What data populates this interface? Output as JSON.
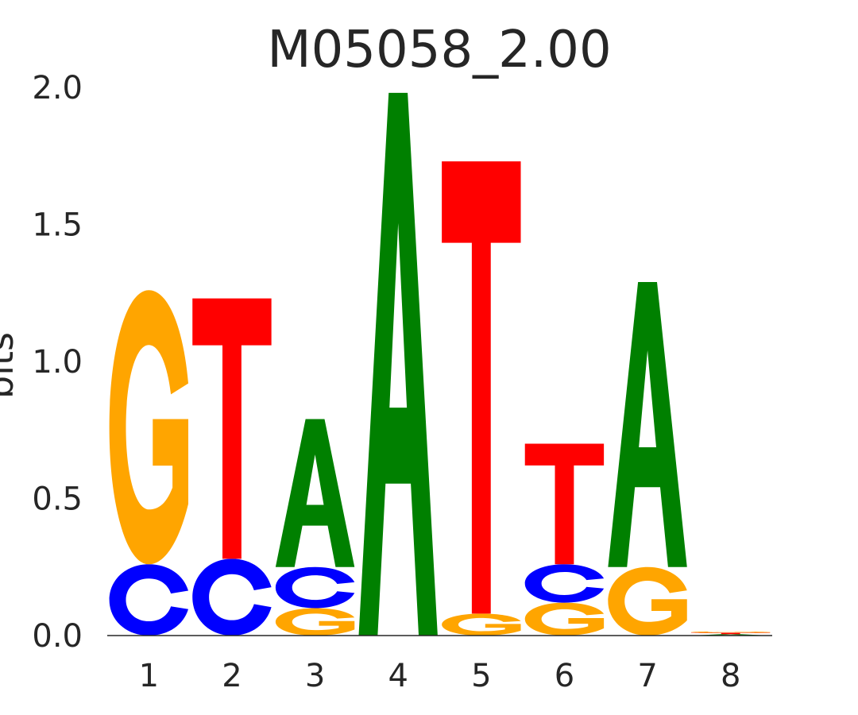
{
  "chart_data": {
    "type": "sequence-logo",
    "title": "M05058_2.00",
    "ylabel": "bits",
    "xlabel": "",
    "ylim": [
      0,
      2
    ],
    "yticks": [
      "0.0",
      "0.5",
      "1.0",
      "1.5",
      "2.0"
    ],
    "ytick_values": [
      0,
      0.5,
      1.0,
      1.5,
      2.0
    ],
    "xticks": [
      "1",
      "2",
      "3",
      "4",
      "5",
      "6",
      "7",
      "8"
    ],
    "grid": false,
    "letter_colors": {
      "A": "#008000",
      "C": "#0000ff",
      "G": "#ffa500",
      "T": "#ff0000"
    },
    "positions": [
      {
        "position": "1",
        "stack": [
          {
            "letter": "C",
            "height": 0.26
          },
          {
            "letter": "G",
            "height": 1.0
          }
        ]
      },
      {
        "position": "2",
        "stack": [
          {
            "letter": "C",
            "height": 0.28
          },
          {
            "letter": "T",
            "height": 0.95
          }
        ]
      },
      {
        "position": "3",
        "stack": [
          {
            "letter": "G",
            "height": 0.1
          },
          {
            "letter": "C",
            "height": 0.15
          },
          {
            "letter": "A",
            "height": 0.54
          }
        ]
      },
      {
        "position": "4",
        "stack": [
          {
            "letter": "A",
            "height": 1.98
          }
        ]
      },
      {
        "position": "5",
        "stack": [
          {
            "letter": "G",
            "height": 0.08
          },
          {
            "letter": "T",
            "height": 1.65
          }
        ]
      },
      {
        "position": "6",
        "stack": [
          {
            "letter": "G",
            "height": 0.12
          },
          {
            "letter": "C",
            "height": 0.14
          },
          {
            "letter": "T",
            "height": 0.44
          }
        ]
      },
      {
        "position": "7",
        "stack": [
          {
            "letter": "G",
            "height": 0.25
          },
          {
            "letter": "A",
            "height": 1.04
          }
        ]
      },
      {
        "position": "8",
        "stack": [
          {
            "letter": "A",
            "height": 0.005
          },
          {
            "letter": "T",
            "height": 0.005
          },
          {
            "letter": "G",
            "height": 0.005
          }
        ]
      }
    ]
  }
}
